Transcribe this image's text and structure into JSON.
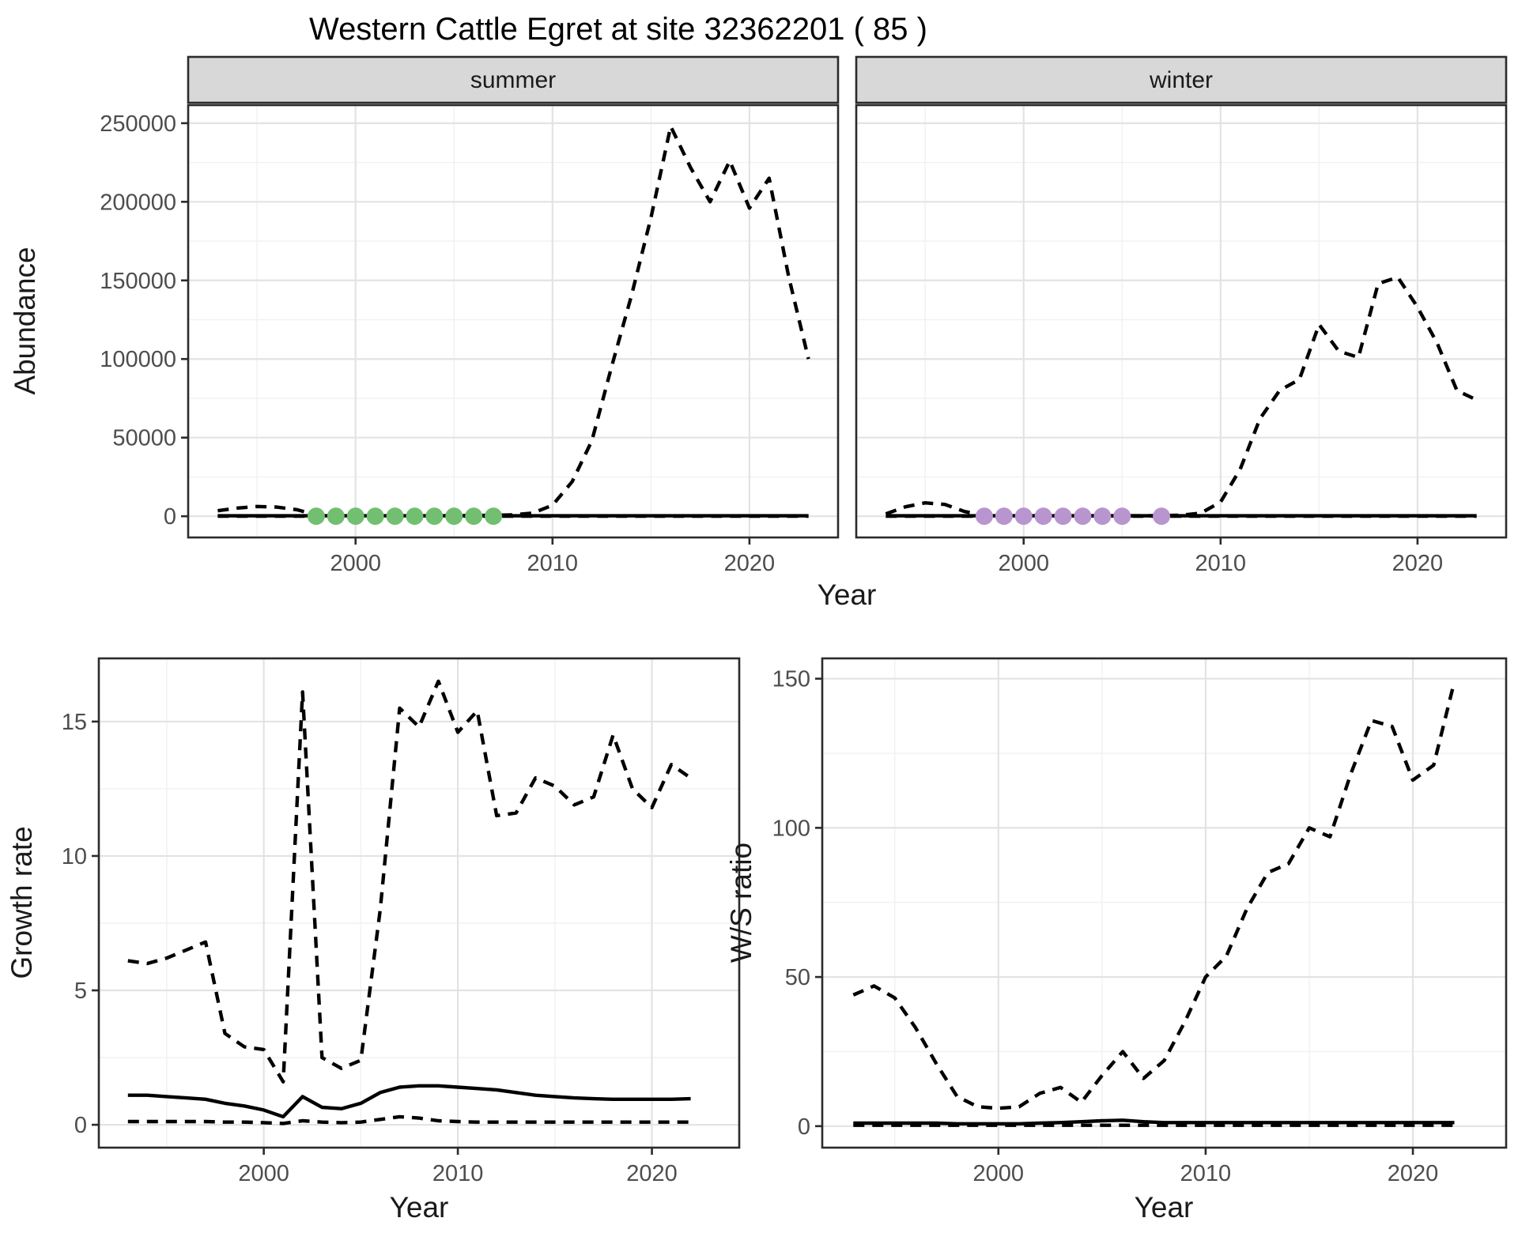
{
  "title": "Western Cattle Egret at site 32362201 ( 85 )",
  "facets": {
    "summer": "summer",
    "winter": "winter"
  },
  "axis_titles": {
    "abundance": "Abundance",
    "year_top": "Year",
    "growth_rate": "Growth rate",
    "year_growth": "Year",
    "ws_ratio": "W/S ratio",
    "year_ws": "Year"
  },
  "colors": {
    "summer_points": "#72bf72",
    "winter_points": "#b995cf",
    "line": "#000000",
    "strip_bg": "#d8d8d8",
    "panel_border": "#2b2b2b",
    "grid_major": "#e3e3e3",
    "grid_minor": "#f1f1f1",
    "tick_text": "#4d4d4d"
  },
  "chart_data": [
    {
      "id": "summer",
      "type": "line",
      "facet_label": "summer",
      "xlabel": "Year",
      "ylabel": "Abundance",
      "xlim": [
        1991.5,
        2024.5
      ],
      "ylim": [
        -13500,
        261500
      ],
      "xticks": [
        2000,
        2010,
        2020
      ],
      "xtick_labels": [
        "2000",
        "2010",
        "2020"
      ],
      "yticks": [
        0,
        50000,
        100000,
        150000,
        200000,
        250000
      ],
      "ytick_labels": [
        "0",
        "50000",
        "100000",
        "150000",
        "200000",
        "250000"
      ],
      "x": [
        1993,
        1994,
        1995,
        1996,
        1997,
        1998,
        1999,
        2000,
        2001,
        2002,
        2003,
        2004,
        2005,
        2006,
        2007,
        2008,
        2009,
        2010,
        2011,
        2012,
        2013,
        2014,
        2015,
        2016,
        2017,
        2018,
        2019,
        2020,
        2021,
        2022,
        2023
      ],
      "series": [
        {
          "name": "upper-ci",
          "style": "dashed",
          "values": [
            3500,
            5200,
            6200,
            5800,
            4200,
            900,
            400,
            300,
            300,
            300,
            300,
            350,
            400,
            500,
            600,
            900,
            2000,
            7000,
            22000,
            48000,
            95000,
            140000,
            190000,
            248000,
            222000,
            200000,
            226000,
            196000,
            215000,
            152000,
            100000
          ]
        },
        {
          "name": "lower-ci",
          "style": "dashed",
          "values": [
            50,
            50,
            50,
            50,
            50,
            50,
            50,
            50,
            50,
            50,
            50,
            50,
            50,
            50,
            50,
            50,
            50,
            50,
            50,
            50,
            50,
            50,
            50,
            50,
            50,
            50,
            50,
            50,
            50,
            50,
            50
          ]
        },
        {
          "name": "mean",
          "style": "solid",
          "values": [
            250,
            250,
            250,
            250,
            250,
            250,
            250,
            250,
            250,
            250,
            250,
            250,
            250,
            250,
            250,
            250,
            250,
            250,
            250,
            250,
            250,
            250,
            250,
            250,
            250,
            250,
            250,
            250,
            250,
            250,
            250
          ]
        }
      ],
      "points": {
        "name": "summer-observed-points",
        "color": "#72bf72",
        "value": 0,
        "years": [
          1998,
          1999,
          2000,
          2001,
          2002,
          2003,
          2004,
          2005,
          2006,
          2007
        ]
      }
    },
    {
      "id": "winter",
      "type": "line",
      "facet_label": "winter",
      "xlabel": "Year",
      "ylabel": "Abundance",
      "xlim": [
        1991.5,
        2024.5
      ],
      "ylim": [
        -13500,
        261500
      ],
      "xticks": [
        2000,
        2010,
        2020
      ],
      "xtick_labels": [
        "2000",
        "2010",
        "2020"
      ],
      "yticks": [
        0,
        50000,
        100000,
        150000,
        200000,
        250000
      ],
      "ytick_labels": [
        "0",
        "50000",
        "100000",
        "150000",
        "200000",
        "250000"
      ],
      "x": [
        1993,
        1994,
        1995,
        1996,
        1997,
        1998,
        1999,
        2000,
        2001,
        2002,
        2003,
        2004,
        2005,
        2006,
        2007,
        2008,
        2009,
        2010,
        2011,
        2012,
        2013,
        2014,
        2015,
        2016,
        2017,
        2018,
        2019,
        2020,
        2021,
        2022,
        2023
      ],
      "series": [
        {
          "name": "upper-ci",
          "style": "dashed",
          "values": [
            1500,
            6000,
            8500,
            7500,
            3000,
            600,
            250,
            250,
            250,
            250,
            250,
            250,
            250,
            300,
            400,
            700,
            2000,
            9000,
            30000,
            62000,
            80000,
            87000,
            122000,
            105000,
            101000,
            148000,
            152000,
            133000,
            110000,
            80000,
            74000
          ]
        },
        {
          "name": "lower-ci",
          "style": "dashed",
          "values": [
            50,
            50,
            50,
            50,
            50,
            50,
            50,
            50,
            50,
            50,
            50,
            50,
            50,
            50,
            50,
            50,
            50,
            50,
            50,
            50,
            50,
            50,
            50,
            50,
            50,
            50,
            50,
            50,
            50,
            50,
            50
          ]
        },
        {
          "name": "mean",
          "style": "solid",
          "values": [
            250,
            250,
            250,
            250,
            250,
            250,
            250,
            250,
            250,
            250,
            250,
            250,
            250,
            250,
            250,
            250,
            250,
            250,
            250,
            250,
            250,
            250,
            250,
            250,
            250,
            250,
            250,
            250,
            250,
            250,
            250
          ]
        }
      ],
      "points": {
        "name": "winter-observed-points",
        "color": "#b995cf",
        "value": 0,
        "years": [
          1998,
          1999,
          2000,
          2001,
          2002,
          2003,
          2004,
          2005,
          2007
        ]
      }
    },
    {
      "id": "growth",
      "type": "line",
      "facet_label": null,
      "xlabel": "Year",
      "ylabel": "Growth rate",
      "xlim": [
        1991.5,
        2024.5
      ],
      "ylim": [
        -0.85,
        17.35
      ],
      "xticks": [
        2000,
        2010,
        2020
      ],
      "xtick_labels": [
        "2000",
        "2010",
        "2020"
      ],
      "yticks": [
        0,
        5,
        10,
        15
      ],
      "ytick_labels": [
        "0",
        "5",
        "10",
        "15"
      ],
      "x": [
        1993,
        1994,
        1995,
        1996,
        1997,
        1998,
        1999,
        2000,
        2001,
        2002,
        2003,
        2004,
        2005,
        2006,
        2007,
        2008,
        2009,
        2010,
        2011,
        2012,
        2013,
        2014,
        2015,
        2016,
        2017,
        2018,
        2019,
        2020,
        2021,
        2022
      ],
      "series": [
        {
          "name": "upper-ci",
          "style": "dashed",
          "values": [
            6.1,
            6.0,
            6.2,
            6.5,
            6.8,
            3.4,
            2.9,
            2.8,
            1.6,
            16.1,
            2.5,
            2.1,
            2.4,
            8.0,
            15.5,
            14.8,
            16.5,
            14.6,
            15.4,
            11.5,
            11.6,
            12.9,
            12.6,
            11.9,
            12.2,
            14.5,
            12.5,
            11.8,
            13.4,
            12.9
          ]
        },
        {
          "name": "lower-ci",
          "style": "dashed",
          "values": [
            0.12,
            0.12,
            0.12,
            0.12,
            0.12,
            0.1,
            0.1,
            0.08,
            0.05,
            0.15,
            0.1,
            0.08,
            0.1,
            0.2,
            0.3,
            0.25,
            0.15,
            0.12,
            0.1,
            0.1,
            0.1,
            0.1,
            0.1,
            0.1,
            0.1,
            0.1,
            0.1,
            0.1,
            0.1,
            0.1
          ]
        },
        {
          "name": "mean",
          "style": "solid",
          "values": [
            1.1,
            1.1,
            1.05,
            1.0,
            0.95,
            0.8,
            0.7,
            0.55,
            0.3,
            1.05,
            0.65,
            0.6,
            0.8,
            1.2,
            1.4,
            1.45,
            1.45,
            1.4,
            1.35,
            1.3,
            1.2,
            1.1,
            1.05,
            1.0,
            0.97,
            0.95,
            0.95,
            0.95,
            0.95,
            0.97
          ]
        }
      ],
      "points": null
    },
    {
      "id": "ws",
      "type": "line",
      "facet_label": null,
      "xlabel": "Year",
      "ylabel": "W/S ratio",
      "xlim": [
        1991.5,
        2024.5
      ],
      "ylim": [
        -7.2,
        156.8
      ],
      "xticks": [
        2000,
        2010,
        2020
      ],
      "xtick_labels": [
        "2000",
        "2010",
        "2020"
      ],
      "yticks": [
        0,
        50,
        100,
        150
      ],
      "ytick_labels": [
        "0",
        "50",
        "100",
        "150"
      ],
      "x": [
        1993,
        1994,
        1995,
        1996,
        1997,
        1998,
        1999,
        2000,
        2001,
        2002,
        2003,
        2004,
        2005,
        2006,
        2007,
        2008,
        2009,
        2010,
        2011,
        2012,
        2013,
        2014,
        2015,
        2016,
        2017,
        2018,
        2019,
        2020,
        2021,
        2022
      ],
      "series": [
        {
          "name": "upper-ci",
          "style": "dashed",
          "values": [
            44,
            47,
            43,
            33,
            21,
            10,
            6.5,
            6,
            6.5,
            11,
            13,
            8,
            17,
            25,
            16,
            22,
            35,
            50,
            57,
            73,
            85,
            88,
            100,
            97,
            118,
            136,
            134,
            116,
            121,
            149
          ]
        },
        {
          "name": "lower-ci",
          "style": "dashed",
          "values": [
            0.3,
            0.3,
            0.3,
            0.3,
            0.3,
            0.3,
            0.3,
            0.3,
            0.3,
            0.3,
            0.3,
            0.3,
            0.3,
            0.3,
            0.3,
            0.3,
            0.3,
            0.3,
            0.3,
            0.3,
            0.3,
            0.3,
            0.3,
            0.3,
            0.3,
            0.3,
            0.3,
            0.3,
            0.3,
            0.3
          ]
        },
        {
          "name": "mean",
          "style": "solid",
          "values": [
            1,
            1,
            1,
            1,
            1,
            0.8,
            0.8,
            0.8,
            0.8,
            1,
            1.2,
            1.5,
            1.8,
            2,
            1.5,
            1.2,
            1.2,
            1.2,
            1.2,
            1.2,
            1.2,
            1.2,
            1.2,
            1.2,
            1.2,
            1.2,
            1.2,
            1.2,
            1.2,
            1.2
          ]
        }
      ],
      "points": null
    }
  ]
}
